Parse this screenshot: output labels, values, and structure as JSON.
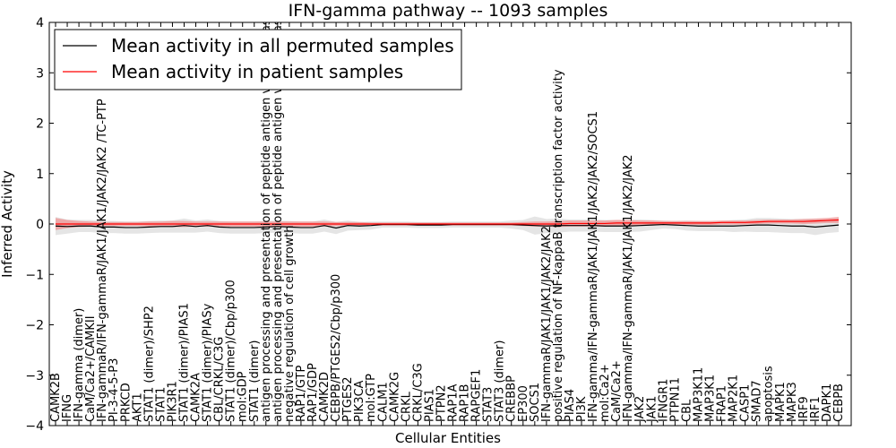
{
  "chart_data": {
    "type": "line",
    "title": "IFN-gamma pathway -- 1093 samples",
    "xlabel": "Cellular Entities",
    "ylabel": "Inferred Activity",
    "ylim": [
      -4,
      4
    ],
    "yticks": [
      "−4",
      "−3",
      "−2",
      "−1",
      "0",
      "1",
      "2",
      "3",
      "4"
    ],
    "legend_position": "upper-left",
    "categories": [
      "CAMK2B",
      "IFNG",
      "IFN-gamma (dimer)",
      "CaM/Ca2+/CAMKII",
      "IFN-gammaR/IFN-gammaR/JAK1/JAK1/JAK2/JAK2   /TC-PTP",
      "PI-3-4-5-P3",
      "PRKCD",
      "AKT1",
      "STAT1 (dimer)/SHP2",
      "STAT1",
      "PIK3R1",
      "STAT1 (dimer)/PIAS1",
      "CAMK2A",
      "STAT1 (dimer)/PIASy",
      "CBL/CRKL/C3G",
      "STAT1 (dimer)/Cbp/p300",
      "mol:GDP",
      "STAT1 (dimer)",
      "antigen processing and presentation of peptide antigen via MHC class I",
      "antigen processing and presentation of peptide antigen via MHC class II",
      "negative regulation of cell growth",
      "RAP1/GTP",
      "RAP1/GDP",
      "CAMK2D",
      "CEBPB/PTGES2/Cbp/p300",
      "PTGES2",
      "PIK3CA",
      "mol:GTP",
      "CALM1",
      "CAMK2G",
      "CRKL",
      "CRKL/C3G",
      "PIAS1",
      "PTPN2",
      "RAP1A",
      "RAP1B",
      "RAPGEF1",
      "STAT3",
      "STAT3 (dimer)",
      "CREBBP",
      "EP300",
      "SOCS1",
      "IFN-gammaR/JAK1/JAK1/JAK2/JAK2",
      "positive regulation of NF-kappaB transcription factor activity",
      "PIAS4",
      "PI3K",
      "IFN-gamma/IFN-gammaR/JAK1/JAK1/JAK2/JAK2/SOCS1",
      "mol:Ca2+",
      "CaM/Ca2+",
      "IFN-gamma/IFN-gammaR/JAK1/JAK1/JAK2/JAK2",
      "JAK2",
      "JAK1",
      "IFNGR1",
      "PTPN11",
      "CBL",
      "MAP3K11",
      "MAP3K1",
      "FRAP1",
      "MAP2K1",
      "CASP1",
      "SMAD7",
      "apoptosis",
      "MAPK1",
      "MAPK3",
      "IRF9",
      "IRF1",
      "DAPK1",
      "CEBPB"
    ],
    "series": [
      {
        "name": "Mean activity in all permuted samples",
        "color": "#000000",
        "band_color": "#cccccc",
        "values": [
          -0.04,
          -0.05,
          -0.04,
          -0.04,
          -0.06,
          -0.06,
          -0.07,
          -0.07,
          -0.06,
          -0.05,
          -0.05,
          -0.03,
          -0.05,
          -0.03,
          -0.06,
          -0.07,
          -0.07,
          -0.07,
          -0.06,
          -0.05,
          -0.06,
          -0.07,
          -0.07,
          -0.03,
          -0.08,
          -0.03,
          -0.04,
          -0.03,
          -0.01,
          -0.01,
          -0.01,
          -0.02,
          -0.02,
          -0.02,
          -0.01,
          -0.01,
          -0.01,
          -0.01,
          -0.01,
          -0.01,
          -0.02,
          -0.03,
          -0.04,
          -0.03,
          -0.03,
          -0.03,
          -0.03,
          -0.04,
          -0.04,
          -0.04,
          -0.03,
          -0.02,
          -0.01,
          -0.02,
          -0.03,
          -0.04,
          -0.04,
          -0.04,
          -0.04,
          -0.03,
          -0.02,
          -0.02,
          -0.03,
          -0.04,
          -0.04,
          -0.06,
          -0.04,
          -0.02
        ],
        "band": [
          0.18,
          0.14,
          0.12,
          0.12,
          0.12,
          0.12,
          0.12,
          0.12,
          0.12,
          0.12,
          0.12,
          0.14,
          0.12,
          0.12,
          0.12,
          0.12,
          0.12,
          0.12,
          0.12,
          0.12,
          0.12,
          0.12,
          0.12,
          0.12,
          0.12,
          0.1,
          0.08,
          0.08,
          0.06,
          0.06,
          0.06,
          0.06,
          0.06,
          0.06,
          0.06,
          0.06,
          0.06,
          0.06,
          0.06,
          0.08,
          0.1,
          0.18,
          0.14,
          0.14,
          0.12,
          0.12,
          0.12,
          0.12,
          0.12,
          0.12,
          0.12,
          0.1,
          0.08,
          0.08,
          0.1,
          0.1,
          0.1,
          0.1,
          0.12,
          0.12,
          0.14,
          0.14,
          0.14,
          0.14,
          0.14,
          0.16,
          0.14,
          0.14
        ]
      },
      {
        "name": "Mean activity in patient samples",
        "color": "#ff0000",
        "band_color": "#f08080",
        "values": [
          0.0,
          0.0,
          0.0,
          0.0,
          0.0,
          0.0,
          0.0,
          0.0,
          0.0,
          0.0,
          0.0,
          0.0,
          0.0,
          0.0,
          0.0,
          0.0,
          0.0,
          0.0,
          0.0,
          0.0,
          0.0,
          0.0,
          0.0,
          0.0,
          0.0,
          0.0,
          0.0,
          0.0,
          0.0,
          0.0,
          0.0,
          0.0,
          0.0,
          0.0,
          0.0,
          0.0,
          0.0,
          0.0,
          0.0,
          0.0,
          0.0,
          0.0,
          0.0,
          0.0,
          0.01,
          0.01,
          0.01,
          0.01,
          0.02,
          0.02,
          0.02,
          0.02,
          0.02,
          0.02,
          0.02,
          0.02,
          0.02,
          0.03,
          0.03,
          0.03,
          0.04,
          0.05,
          0.05,
          0.05,
          0.05,
          0.06,
          0.07,
          0.08
        ],
        "band": [
          0.12,
          0.08,
          0.06,
          0.05,
          0.04,
          0.04,
          0.04,
          0.04,
          0.05,
          0.05,
          0.06,
          0.06,
          0.05,
          0.05,
          0.05,
          0.05,
          0.05,
          0.05,
          0.05,
          0.05,
          0.05,
          0.05,
          0.05,
          0.05,
          0.04,
          0.04,
          0.04,
          0.03,
          0.03,
          0.03,
          0.03,
          0.03,
          0.03,
          0.03,
          0.03,
          0.03,
          0.03,
          0.03,
          0.03,
          0.03,
          0.04,
          0.05,
          0.05,
          0.06,
          0.06,
          0.06,
          0.06,
          0.06,
          0.06,
          0.06,
          0.05,
          0.05,
          0.04,
          0.04,
          0.04,
          0.04,
          0.04,
          0.04,
          0.04,
          0.04,
          0.04,
          0.04,
          0.04,
          0.04,
          0.05,
          0.05,
          0.05,
          0.06
        ]
      }
    ]
  }
}
